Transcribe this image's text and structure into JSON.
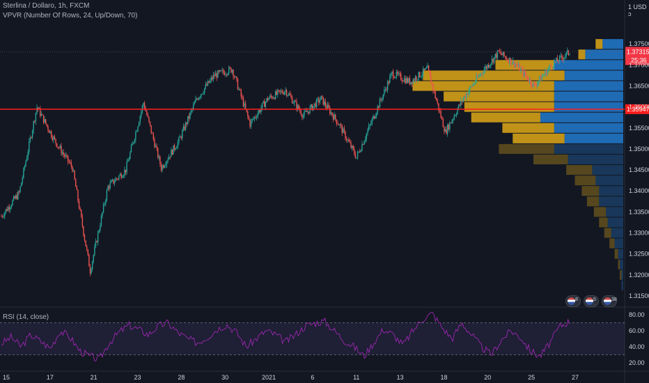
{
  "legend": {
    "symbol": "Sterlina / Dollaro, 1h, FXCM",
    "vpvr": "VPVR (Number Of Rows, 24, Up/Down, 70)",
    "rsi": "RSI (14, close)"
  },
  "currency_unit": "1 USD ͻ",
  "event_badges": [
    {
      "label": "8",
      "icon": "us-flag-icon"
    },
    {
      "label": "5 ·",
      "icon": "us-flag-icon"
    },
    {
      "label": "38",
      "icon": "us-flag-icon"
    }
  ],
  "colors": {
    "background": "#131722",
    "candle_up": "#26a69a",
    "candle_down": "#ef5350",
    "vp_up": "#d4a017",
    "vp_down": "#2174c4",
    "horizontal_line": "#ff1e1e",
    "rsi_line": "#9c27b0"
  },
  "chart_data": {
    "type": "candlestick",
    "x_tick_labels": [
      "15",
      "17",
      "21",
      "23",
      "28",
      "30",
      "2021",
      "6",
      "11",
      "13",
      "18",
      "20",
      "25",
      "27"
    ],
    "y_tick_labels": [
      "1.37500",
      "1.37000",
      "1.36500",
      "1.36000",
      "1.35500",
      "1.35000",
      "1.34500",
      "1.34000",
      "1.33500",
      "1.33000",
      "1.32500",
      "1.32000",
      "1.31500"
    ],
    "ylim": [
      1.3125,
      1.3805
    ],
    "last_price": {
      "label": "1.37315",
      "value": 1.37315,
      "countdown": "25:36"
    },
    "horizontal_line": {
      "label": "1.35947",
      "value": 1.35947
    },
    "price_path": [
      {
        "day": "15",
        "v": 1.334
      },
      {
        "day": "16",
        "v": 1.3395
      },
      {
        "day": "17",
        "v": 1.36
      },
      {
        "day": "18",
        "v": 1.352
      },
      {
        "day": "19",
        "v": 1.3455
      },
      {
        "day": "21",
        "v": 1.321
      },
      {
        "day": "22",
        "v": 1.341
      },
      {
        "day": "23",
        "v": 1.345
      },
      {
        "day": "24",
        "v": 1.361
      },
      {
        "day": "27",
        "v": 1.3455
      },
      {
        "day": "28",
        "v": 1.352
      },
      {
        "day": "29",
        "v": 1.362
      },
      {
        "day": "30",
        "v": 1.3675
      },
      {
        "day": "31",
        "v": 1.369
      },
      {
        "day": "2021",
        "v": 1.356
      },
      {
        "day": "4",
        "v": 1.362
      },
      {
        "day": "5",
        "v": 1.364
      },
      {
        "day": "6",
        "v": 1.358
      },
      {
        "day": "7",
        "v": 1.362
      },
      {
        "day": "8",
        "v": 1.356
      },
      {
        "day": "11",
        "v": 1.348
      },
      {
        "day": "12",
        "v": 1.358
      },
      {
        "day": "13",
        "v": 1.368
      },
      {
        "day": "14",
        "v": 1.366
      },
      {
        "day": "15b",
        "v": 1.369
      },
      {
        "day": "18",
        "v": 1.354
      },
      {
        "day": "19",
        "v": 1.362
      },
      {
        "day": "20",
        "v": 1.368
      },
      {
        "day": "21b",
        "v": 1.373
      },
      {
        "day": "22",
        "v": 1.37
      },
      {
        "day": "25",
        "v": 1.365
      },
      {
        "day": "26",
        "v": 1.37
      },
      {
        "day": "27",
        "v": 1.3731
      }
    ],
    "volume_profile": [
      {
        "price": 1.375,
        "up": 0.04,
        "down": 0.12
      },
      {
        "price": 1.3725,
        "up": 0.04,
        "down": 0.22
      },
      {
        "price": 1.37,
        "up": 0.34,
        "down": 0.4
      },
      {
        "price": 1.3675,
        "up": 0.82,
        "down": 0.34
      },
      {
        "price": 1.365,
        "up": 0.82,
        "down": 0.4
      },
      {
        "price": 1.3625,
        "up": 0.64,
        "down": 0.4
      },
      {
        "price": 1.36,
        "up": 0.52,
        "down": 0.4
      },
      {
        "price": 1.3575,
        "up": 0.4,
        "down": 0.48
      },
      {
        "price": 1.355,
        "up": 0.3,
        "down": 0.4
      },
      {
        "price": 1.3525,
        "up": 0.3,
        "down": 0.34
      },
      {
        "price": 1.35,
        "up": 0.32,
        "down": 0.4
      },
      {
        "price": 1.3475,
        "up": 0.2,
        "down": 0.32
      },
      {
        "price": 1.345,
        "up": 0.15,
        "down": 0.18
      },
      {
        "price": 1.3425,
        "up": 0.12,
        "down": 0.16
      },
      {
        "price": 1.34,
        "up": 0.1,
        "down": 0.14
      },
      {
        "price": 1.3375,
        "up": 0.07,
        "down": 0.14
      },
      {
        "price": 1.335,
        "up": 0.07,
        "down": 0.1
      },
      {
        "price": 1.3325,
        "up": 0.05,
        "down": 0.09
      },
      {
        "price": 1.33,
        "up": 0.04,
        "down": 0.07
      },
      {
        "price": 1.3275,
        "up": 0.03,
        "down": 0.05
      },
      {
        "price": 1.325,
        "up": 0.02,
        "down": 0.03
      },
      {
        "price": 1.3225,
        "up": 0.01,
        "down": 0.02
      },
      {
        "price": 1.32,
        "up": 0.01,
        "down": 0.01
      },
      {
        "price": 1.3175,
        "up": 0.0,
        "down": 0.01
      }
    ],
    "rsi": {
      "y_tick_labels": [
        "80.00",
        "60.00",
        "40.00",
        "20.00"
      ],
      "ylim": [
        12,
        88
      ],
      "band": [
        30,
        70
      ],
      "values": [
        44,
        52,
        40,
        55,
        47,
        38,
        60,
        52,
        35,
        28,
        24,
        45,
        58,
        67,
        62,
        55,
        66,
        70,
        58,
        50,
        45,
        52,
        62,
        68,
        58,
        40,
        50,
        60,
        55,
        46,
        55,
        66,
        70,
        72,
        60,
        48,
        40,
        28,
        45,
        62,
        55,
        42,
        60,
        75,
        82,
        64,
        50,
        70,
        55,
        40,
        30,
        48,
        60,
        52,
        35,
        28,
        45,
        66,
        72
      ]
    }
  }
}
